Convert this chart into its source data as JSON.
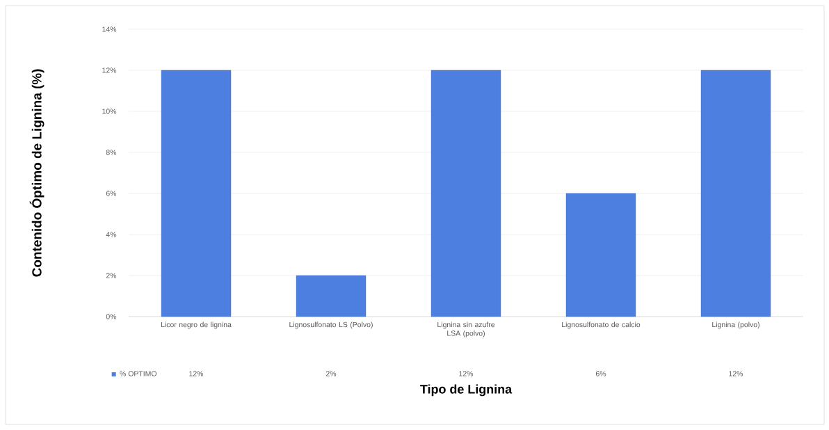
{
  "chart_data": {
    "type": "bar",
    "categories": [
      "Licor negro de lignina",
      "Lignosulfonato LS (Polvo)",
      "Lignina sin azufre LSA (polvo)",
      "Lignosulfonato de calcio",
      "Lignina (polvo)"
    ],
    "series": [
      {
        "name": "% OPTIMO",
        "color": "#4d7fe0",
        "values": [
          12,
          2,
          12,
          6,
          12
        ],
        "value_labels": [
          "12%",
          "2%",
          "12%",
          "6%",
          "12%"
        ]
      }
    ],
    "xlabel": "Tipo de Lignina",
    "ylabel": "Contenido Óptimo de Lignina (%)",
    "ylim": [
      0,
      14
    ],
    "yticks": [
      {
        "value": 0,
        "label": "0%"
      },
      {
        "value": 2,
        "label": "2%"
      },
      {
        "value": 4,
        "label": "4%"
      },
      {
        "value": 6,
        "label": "6%"
      },
      {
        "value": 8,
        "label": "8%"
      },
      {
        "value": 10,
        "label": "10%"
      },
      {
        "value": 12,
        "label": "12%"
      },
      {
        "value": 14,
        "label": "14%"
      }
    ],
    "grid": "y",
    "legend": "bottom left"
  }
}
